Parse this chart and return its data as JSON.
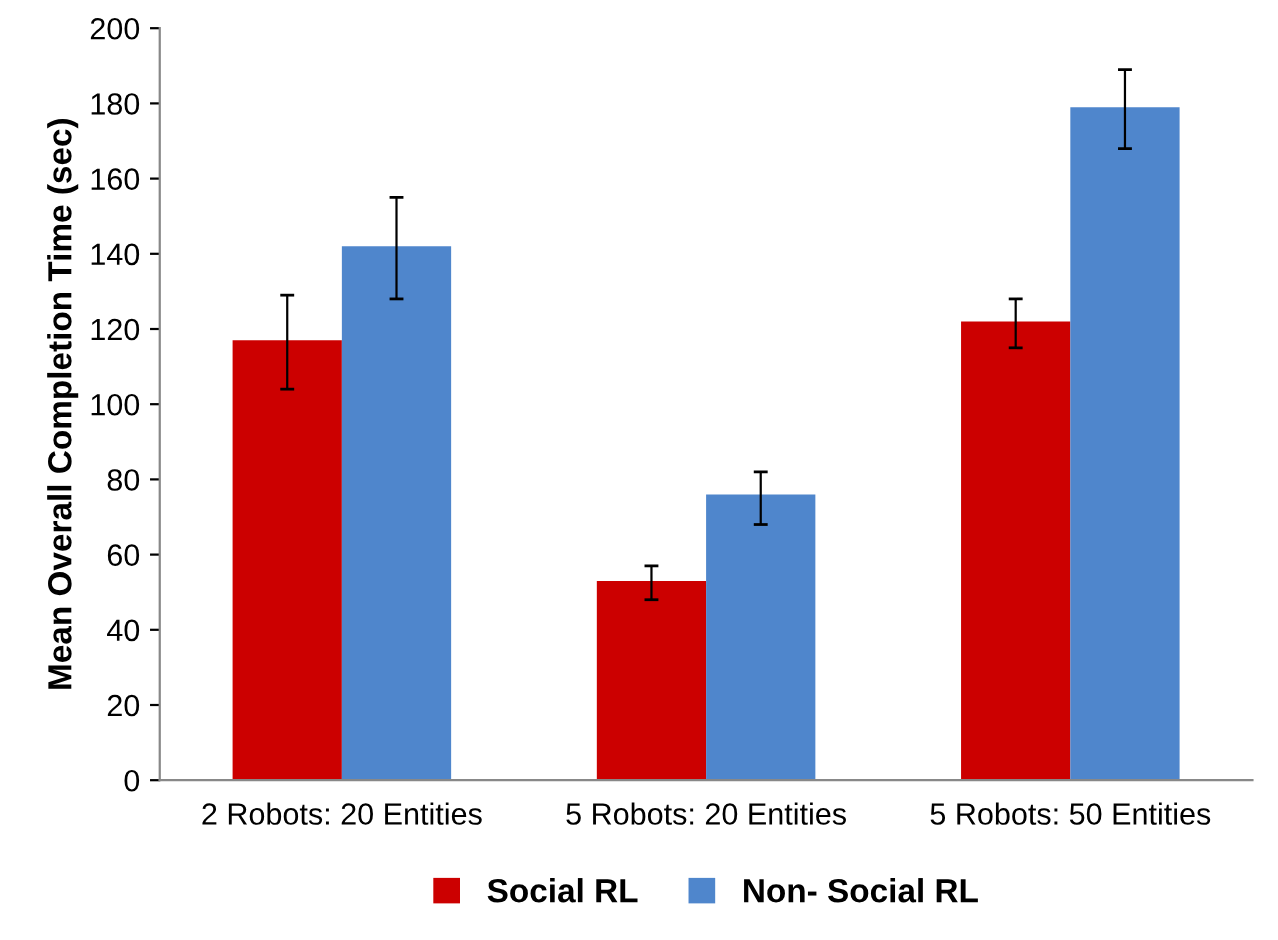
{
  "chart_data": {
    "type": "bar",
    "ylabel": "Mean Overall Completion Time (sec)",
    "categories": [
      "2 Robots: 20 Entities",
      "5 Robots: 20 Entities",
      "5 Robots: 50 Entities"
    ],
    "series": [
      {
        "name": "Social RL",
        "color": "#cc0000",
        "values": [
          117,
          53,
          122
        ],
        "errors": [
          [
            104,
            129
          ],
          [
            48,
            57
          ],
          [
            115,
            128
          ]
        ]
      },
      {
        "name": "Non- Social RL",
        "color": "#4f86cc",
        "values": [
          142,
          76,
          179
        ],
        "errors": [
          [
            128,
            155
          ],
          [
            68,
            82
          ],
          [
            168,
            189
          ]
        ]
      }
    ],
    "ylim": [
      0,
      200
    ],
    "yticks": [
      0,
      20,
      40,
      60,
      80,
      100,
      120,
      140,
      160,
      180,
      200
    ],
    "grid": false,
    "legend": "bottom"
  }
}
